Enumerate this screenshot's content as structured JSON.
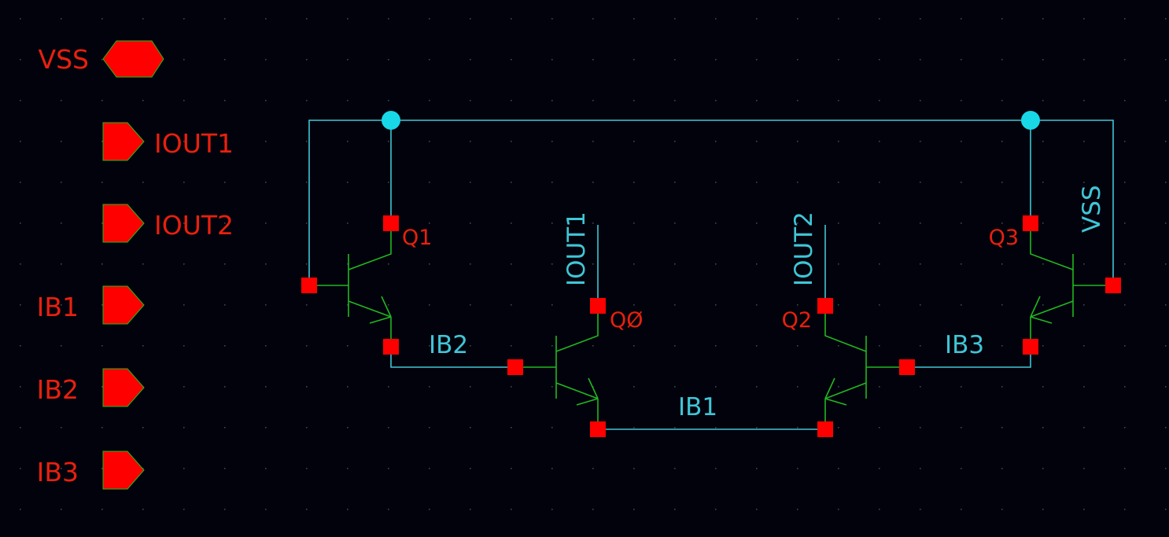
{
  "colors": {
    "background": "#02020c",
    "grid_dot": "#3a4a4a",
    "wire": "#3fc6d6",
    "device": "#20b820",
    "pin": "#ff0000",
    "pin_label": "#e8200e",
    "net_label": "#3fc6d6",
    "junction": "#18d8e8"
  },
  "pins": [
    {
      "name": "VSS",
      "kind": "inout-pin-icon"
    },
    {
      "name": "IOUT1",
      "kind": "output-pin-icon"
    },
    {
      "name": "IOUT2",
      "kind": "output-pin-icon"
    },
    {
      "name": "IB1",
      "kind": "input-pin-icon"
    },
    {
      "name": "IB2",
      "kind": "input-pin-icon"
    },
    {
      "name": "IB3",
      "kind": "input-pin-icon"
    }
  ],
  "transistors": [
    {
      "name": "Q1",
      "type": "npn"
    },
    {
      "name": "QØ",
      "type": "npn"
    },
    {
      "name": "Q2",
      "type": "npn"
    },
    {
      "name": "Q3",
      "type": "npn"
    }
  ],
  "net_labels": {
    "ib2": "IB2",
    "ib1": "IB1",
    "ib3": "IB3",
    "iout1": "IOUT1",
    "iout2": "IOUT2",
    "vss": "VSS"
  }
}
